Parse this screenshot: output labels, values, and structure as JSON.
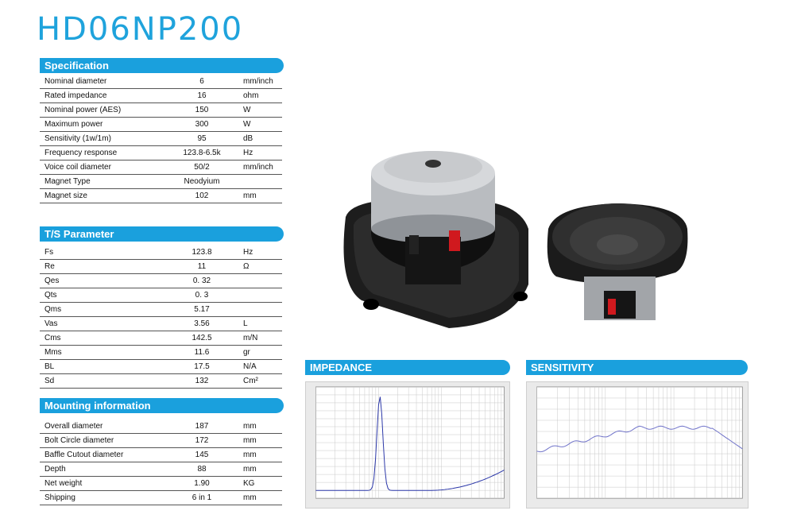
{
  "title": "HD06NP200",
  "colors": {
    "accent": "#1aa0dd",
    "title": "#1fa3dc"
  },
  "specification": {
    "heading": "Specification",
    "rows": [
      {
        "label": "Nominal diameter",
        "value": "6",
        "unit": "mm/inch"
      },
      {
        "label": "Rated impedance",
        "value": "16",
        "unit": "ohm"
      },
      {
        "label": "Nominal power (AES)",
        "value": "150",
        "unit": "W"
      },
      {
        "label": "Maximum power",
        "value": "300",
        "unit": "W"
      },
      {
        "label": "Sensitivity (1w/1m)",
        "value": "95",
        "unit": "dB"
      },
      {
        "label": "Frequency response",
        "value": "123.8-6.5k",
        "unit": "Hz"
      },
      {
        "label": "Voice coil diameter",
        "value": "50/2",
        "unit": "mm/inch"
      },
      {
        "label": "Magnet Type",
        "value": "Neodyium",
        "unit": ""
      },
      {
        "label": "Magnet size",
        "value": "102",
        "unit": "mm"
      }
    ]
  },
  "ts_parameter": {
    "heading": "T/S Parameter",
    "rows": [
      {
        "label": "Fs",
        "value": "123.8",
        "unit": "Hz"
      },
      {
        "label": "Re",
        "value": "11",
        "unit": "Ω"
      },
      {
        "label": "Qes",
        "value": "0. 32",
        "unit": ""
      },
      {
        "label": "Qts",
        "value": "0. 3",
        "unit": ""
      },
      {
        "label": "Qms",
        "value": "5.17",
        "unit": ""
      },
      {
        "label": "Vas",
        "value": "3.56",
        "unit": "L"
      },
      {
        "label": "Cms",
        "value": "142.5",
        "unit": "m/N"
      },
      {
        "label": "Mms",
        "value": "11.6",
        "unit": "gr"
      },
      {
        "label": "BL",
        "value": "17.5",
        "unit": "N/A"
      },
      {
        "label": "Sd",
        "value": "132",
        "unit": "Cm²"
      }
    ]
  },
  "mounting": {
    "heading": "Mounting information",
    "rows": [
      {
        "label": "Overall diameter",
        "value": "187",
        "unit": "mm"
      },
      {
        "label": "Bolt Circle diameter",
        "value": "172",
        "unit": "mm"
      },
      {
        "label": "Baffle Cutout diameter",
        "value": "145",
        "unit": "mm"
      },
      {
        "label": "Depth",
        "value": "88",
        "unit": "mm"
      },
      {
        "label": "Net weight",
        "value": "1.90",
        "unit": "KG"
      },
      {
        "label": "Shipping",
        "value": "6 in  1",
        "unit": "mm"
      }
    ]
  },
  "graphs": {
    "impedance_heading": "IMPEDANCE",
    "sensitivity_heading": "SENSITIVITY"
  }
}
